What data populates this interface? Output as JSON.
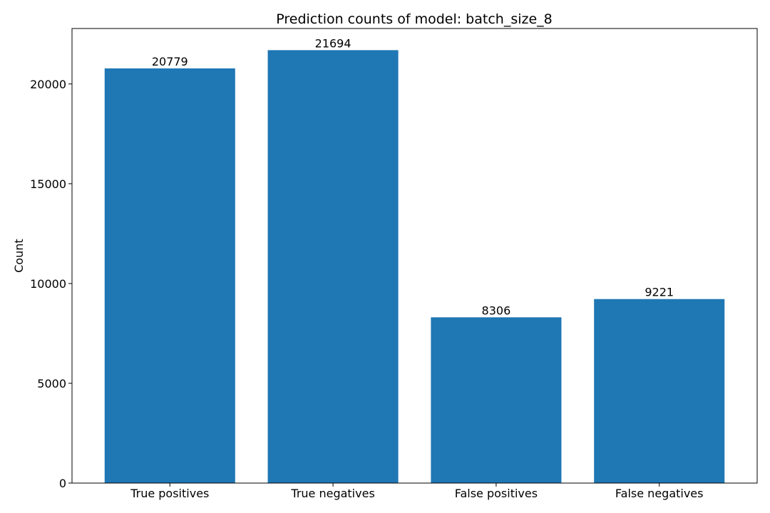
{
  "chart_data": {
    "type": "bar",
    "title": "Prediction counts of model: batch_size_8",
    "xlabel": "",
    "ylabel": "Count",
    "categories": [
      "True positives",
      "True negatives",
      "False positives",
      "False negatives"
    ],
    "values": [
      20779,
      21694,
      8306,
      9221
    ],
    "data_labels": [
      "20779",
      "21694",
      "8306",
      "9221"
    ],
    "yticks": [
      0,
      5000,
      10000,
      15000,
      20000
    ],
    "ytick_labels": [
      "0",
      "5000",
      "10000",
      "15000",
      "20000"
    ],
    "ylim": [
      0,
      22779
    ],
    "grid": false,
    "legend": "none",
    "bar_color": "#1f77b4"
  }
}
